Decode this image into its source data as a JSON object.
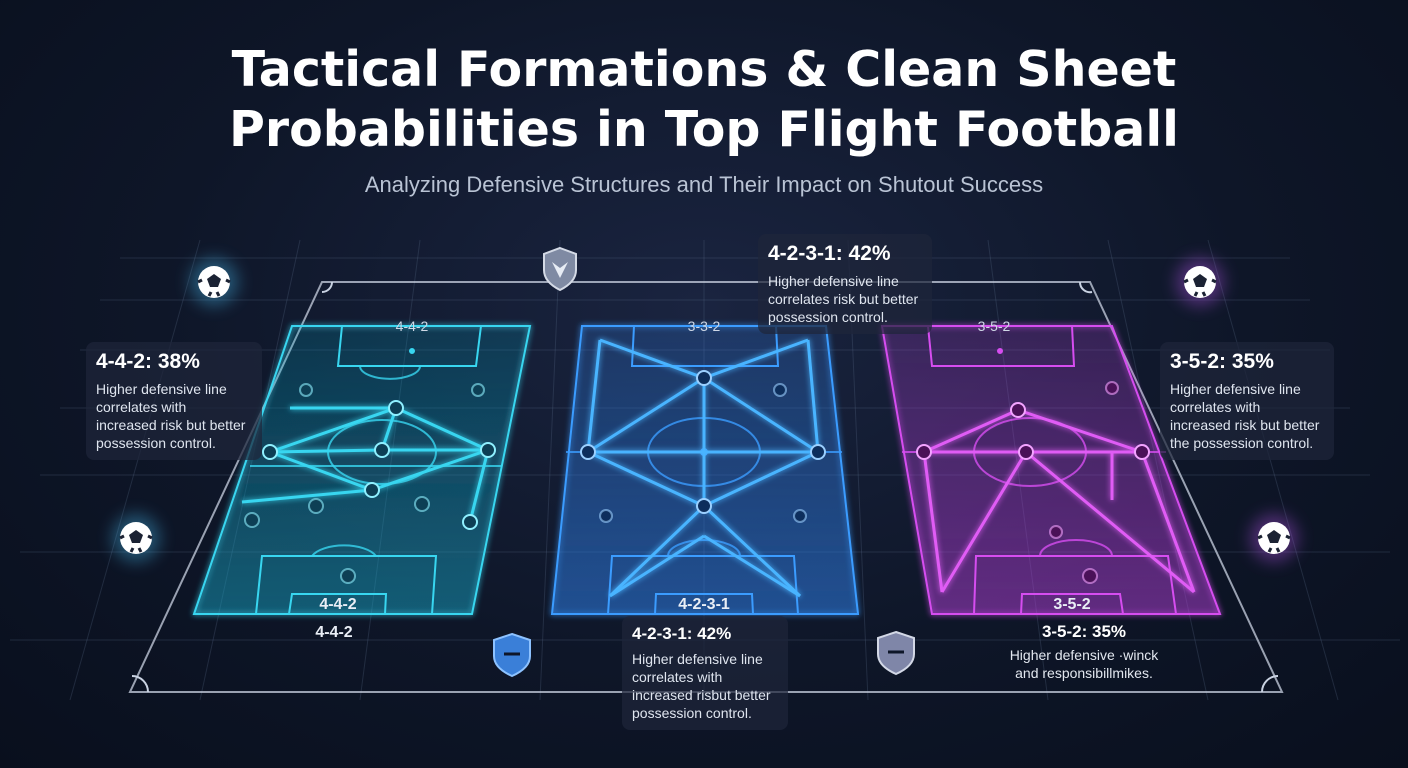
{
  "header": {
    "title_line1": "Tactical Formations & Clean Sheet",
    "title_line2": "Probabilities in Top Flight Football",
    "subtitle": "Analyzing Defensive Structures and Their Impact on Shutout Success"
  },
  "colors": {
    "pitch_cyan": "#38d6f0",
    "pitch_blue": "#3b9cff",
    "pitch_magenta": "#d64df0",
    "background": "#0e1628"
  },
  "icons": {
    "ball": "soccer-ball-icon",
    "shield": "shield-icon",
    "crest": "crest-shield-icon"
  },
  "pitches": [
    {
      "id": "left",
      "formation_top": "4-4-2",
      "formation_box": "4-4-2",
      "formation_below": "4-4-2",
      "card": {
        "stat": "4-4-2: 38%",
        "desc_lines": [
          "Higher defensive line",
          "correlates with",
          "increased risk but better",
          "possession control."
        ]
      }
    },
    {
      "id": "center",
      "formation_top": "3-3-2",
      "formation_box": "4-2-3-1",
      "card_top": {
        "stat": "4-2-3-1: 42%",
        "desc_lines": [
          "Higher defensive line",
          "correlates risk but better",
          "possession control."
        ]
      },
      "card_bottom": {
        "stat": "4-2-3-1: 42%",
        "desc_lines": [
          "Higher defensive line",
          "correlates with",
          "increased risbut better",
          "possession control."
        ]
      }
    },
    {
      "id": "right",
      "formation_top": "3-5-2",
      "formation_box": "3-5-2",
      "card": {
        "stat": "3-5-2: 35%",
        "desc_lines": [
          "Higher defensive line",
          "correlates with",
          "increased risk but better",
          "the possession control."
        ]
      },
      "below": {
        "stat": "3-5-2: 35%",
        "desc_lines": [
          "Higher defensive ·winck",
          "and responsibillmikes."
        ]
      }
    }
  ]
}
